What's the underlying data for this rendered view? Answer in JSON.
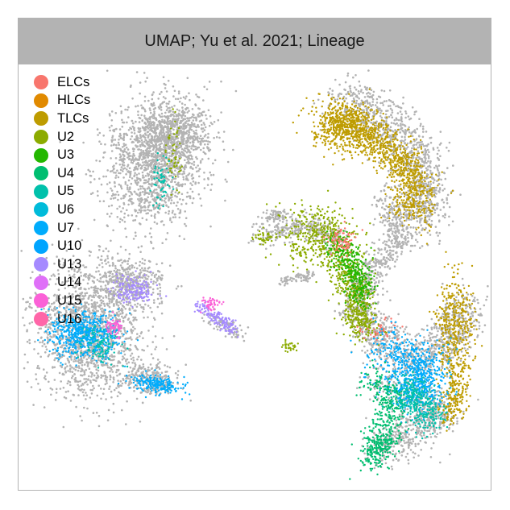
{
  "chart_data": {
    "type": "scatter",
    "title": "UMAP; Yu et al. 2021; Lineage",
    "xlabel": "",
    "ylabel": "",
    "grid": false,
    "legend_position": "top-left",
    "background_color": "#b3b3b3",
    "series": [
      {
        "name": "ELCs",
        "color": "#F8766D"
      },
      {
        "name": "HLCs",
        "color": "#E18A00"
      },
      {
        "name": "TLCs",
        "color": "#BE9C00"
      },
      {
        "name": "U2",
        "color": "#8CAB00"
      },
      {
        "name": "U3",
        "color": "#24B700"
      },
      {
        "name": "U4",
        "color": "#00BE70"
      },
      {
        "name": "U5",
        "color": "#00C1AB"
      },
      {
        "name": "U6",
        "color": "#00BBDA"
      },
      {
        "name": "U7",
        "color": "#00ACFC"
      },
      {
        "name": "U10",
        "color": "#00A5FF"
      },
      {
        "name": "U13",
        "color": "#A58AFF"
      },
      {
        "name": "U14",
        "color": "#DF70F8"
      },
      {
        "name": "U15",
        "color": "#FB61D7"
      },
      {
        "name": "U16",
        "color": "#FF66A8"
      }
    ]
  }
}
